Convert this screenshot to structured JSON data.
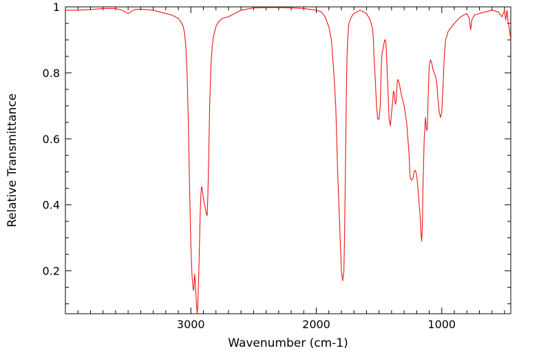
{
  "chart_data": {
    "type": "line",
    "title": "",
    "xlabel": "Wavenumber (cm-1)",
    "ylabel": "Relative Transmittance",
    "xlim": [
      4000,
      450
    ],
    "x_reversed": true,
    "ylim": [
      0.07,
      1.0
    ],
    "x_ticks": [
      3000,
      2000,
      1000
    ],
    "y_ticks": [
      0.2,
      0.4,
      0.6,
      0.8,
      1
    ],
    "y_tick_labels": [
      "0.2",
      "0.4",
      "0.6",
      "0.8",
      "1"
    ],
    "grid": false,
    "legend": "none",
    "line_color": "#ee1111",
    "series": [
      {
        "x": [
          4000,
          3900,
          3800,
          3700,
          3600,
          3550,
          3500,
          3450,
          3400,
          3300,
          3200,
          3150,
          3100,
          3080,
          3060,
          3050,
          3040,
          3030,
          3020,
          3010,
          3000,
          2990,
          2980,
          2975,
          2970,
          2965,
          2960,
          2955,
          2950,
          2945,
          2940,
          2935,
          2930,
          2925,
          2920,
          2915,
          2910,
          2900,
          2890,
          2880,
          2875,
          2870,
          2865,
          2860,
          2855,
          2850,
          2840,
          2830,
          2820,
          2800,
          2780,
          2750,
          2700,
          2650,
          2600,
          2500,
          2400,
          2300,
          2200,
          2100,
          2000,
          1960,
          1930,
          1900,
          1880,
          1860,
          1845,
          1830,
          1815,
          1800,
          1790,
          1780,
          1775,
          1770,
          1765,
          1760,
          1755,
          1750,
          1745,
          1740,
          1730,
          1720,
          1700,
          1650,
          1600,
          1570,
          1550,
          1545,
          1540,
          1530,
          1520,
          1510,
          1500,
          1490,
          1485,
          1480,
          1475,
          1470,
          1465,
          1460,
          1455,
          1450,
          1445,
          1440,
          1430,
          1420,
          1410,
          1400,
          1390,
          1385,
          1380,
          1375,
          1370,
          1365,
          1360,
          1355,
          1350,
          1340,
          1330,
          1320,
          1300,
          1280,
          1270,
          1260,
          1255,
          1250,
          1240,
          1230,
          1220,
          1210,
          1200,
          1190,
          1180,
          1175,
          1170,
          1165,
          1160,
          1155,
          1150,
          1140,
          1130,
          1125,
          1120,
          1115,
          1110,
          1105,
          1100,
          1090,
          1080,
          1070,
          1060,
          1050,
          1040,
          1030,
          1020,
          1010,
          1000,
          990,
          980,
          970,
          960,
          950,
          900,
          850,
          800,
          780,
          770,
          760,
          740,
          700,
          650,
          600,
          550,
          520,
          500,
          490,
          480,
          470,
          460,
          450
        ],
        "y": [
          0.99,
          0.99,
          0.992,
          0.995,
          0.995,
          0.99,
          0.98,
          0.992,
          0.993,
          0.99,
          0.98,
          0.975,
          0.965,
          0.955,
          0.94,
          0.92,
          0.88,
          0.8,
          0.65,
          0.45,
          0.28,
          0.18,
          0.14,
          0.15,
          0.19,
          0.17,
          0.13,
          0.1,
          0.07,
          0.09,
          0.15,
          0.22,
          0.3,
          0.38,
          0.43,
          0.455,
          0.45,
          0.42,
          0.4,
          0.38,
          0.37,
          0.368,
          0.42,
          0.5,
          0.6,
          0.7,
          0.82,
          0.88,
          0.91,
          0.94,
          0.955,
          0.965,
          0.97,
          0.98,
          0.99,
          0.997,
          0.998,
          0.998,
          0.997,
          0.995,
          0.99,
          0.985,
          0.97,
          0.94,
          0.9,
          0.8,
          0.7,
          0.5,
          0.35,
          0.2,
          0.17,
          0.2,
          0.3,
          0.45,
          0.6,
          0.75,
          0.85,
          0.9,
          0.93,
          0.95,
          0.96,
          0.97,
          0.98,
          0.99,
          0.98,
          0.96,
          0.93,
          0.9,
          0.85,
          0.78,
          0.7,
          0.66,
          0.66,
          0.7,
          0.78,
          0.84,
          0.86,
          0.87,
          0.88,
          0.89,
          0.9,
          0.9,
          0.89,
          0.85,
          0.76,
          0.66,
          0.64,
          0.68,
          0.72,
          0.745,
          0.74,
          0.72,
          0.705,
          0.71,
          0.74,
          0.77,
          0.78,
          0.77,
          0.75,
          0.73,
          0.7,
          0.65,
          0.6,
          0.55,
          0.5,
          0.48,
          0.475,
          0.48,
          0.5,
          0.505,
          0.49,
          0.45,
          0.4,
          0.38,
          0.35,
          0.31,
          0.29,
          0.33,
          0.45,
          0.6,
          0.665,
          0.64,
          0.625,
          0.63,
          0.7,
          0.77,
          0.82,
          0.84,
          0.83,
          0.81,
          0.8,
          0.79,
          0.77,
          0.72,
          0.68,
          0.665,
          0.68,
          0.76,
          0.85,
          0.9,
          0.91,
          0.925,
          0.95,
          0.97,
          0.98,
          0.965,
          0.93,
          0.96,
          0.975,
          0.98,
          0.985,
          0.99,
          0.985,
          0.97,
          0.99,
          0.96,
          0.99,
          0.95,
          0.93,
          0.9
        ]
      }
    ]
  }
}
